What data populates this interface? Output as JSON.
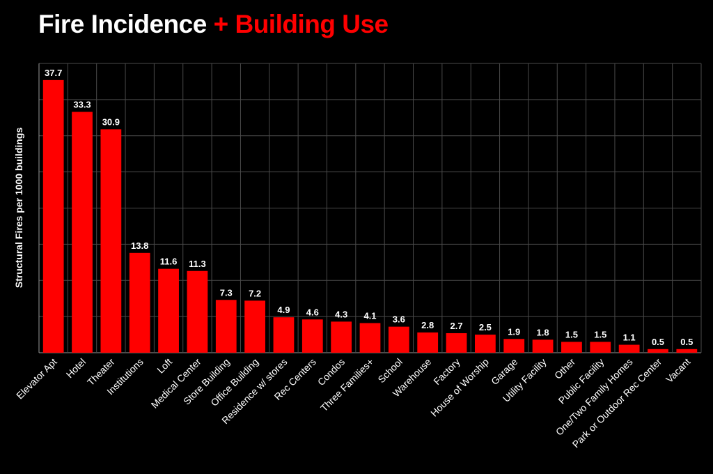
{
  "chart_data": {
    "type": "bar",
    "title_part1": "Fire Incidence",
    "title_part2": "+ Building Use",
    "title_colors": [
      "#ffffff",
      "#ff0000"
    ],
    "ylabel": "Structural Fires per 1000 buildings",
    "xlabel": "",
    "ylim": [
      0,
      40
    ],
    "ytick_step": 5,
    "grid": true,
    "bar_color": "#ff0000",
    "background": "#000000",
    "categories": [
      "Elevator Apt",
      "Hotel",
      "Theater",
      "Institutions",
      "Loft",
      "Medical Center",
      "Store Building",
      "Office Building",
      "Residence w/ stores",
      "Rec Centers",
      "Condos",
      "Three Families+",
      "School",
      "Warehouse",
      "Factory",
      "House of Worship",
      "Garage",
      "Utility Facility",
      "Other",
      "Public Facility",
      "One/Two Family Homes",
      "Park or Outdoor Rec Center",
      "Vacant"
    ],
    "values": [
      37.7,
      33.3,
      30.9,
      13.8,
      11.6,
      11.3,
      7.3,
      7.2,
      4.9,
      4.6,
      4.3,
      4.1,
      3.6,
      2.8,
      2.7,
      2.5,
      1.9,
      1.8,
      1.5,
      1.5,
      1.1,
      0.5,
      0.5
    ]
  }
}
